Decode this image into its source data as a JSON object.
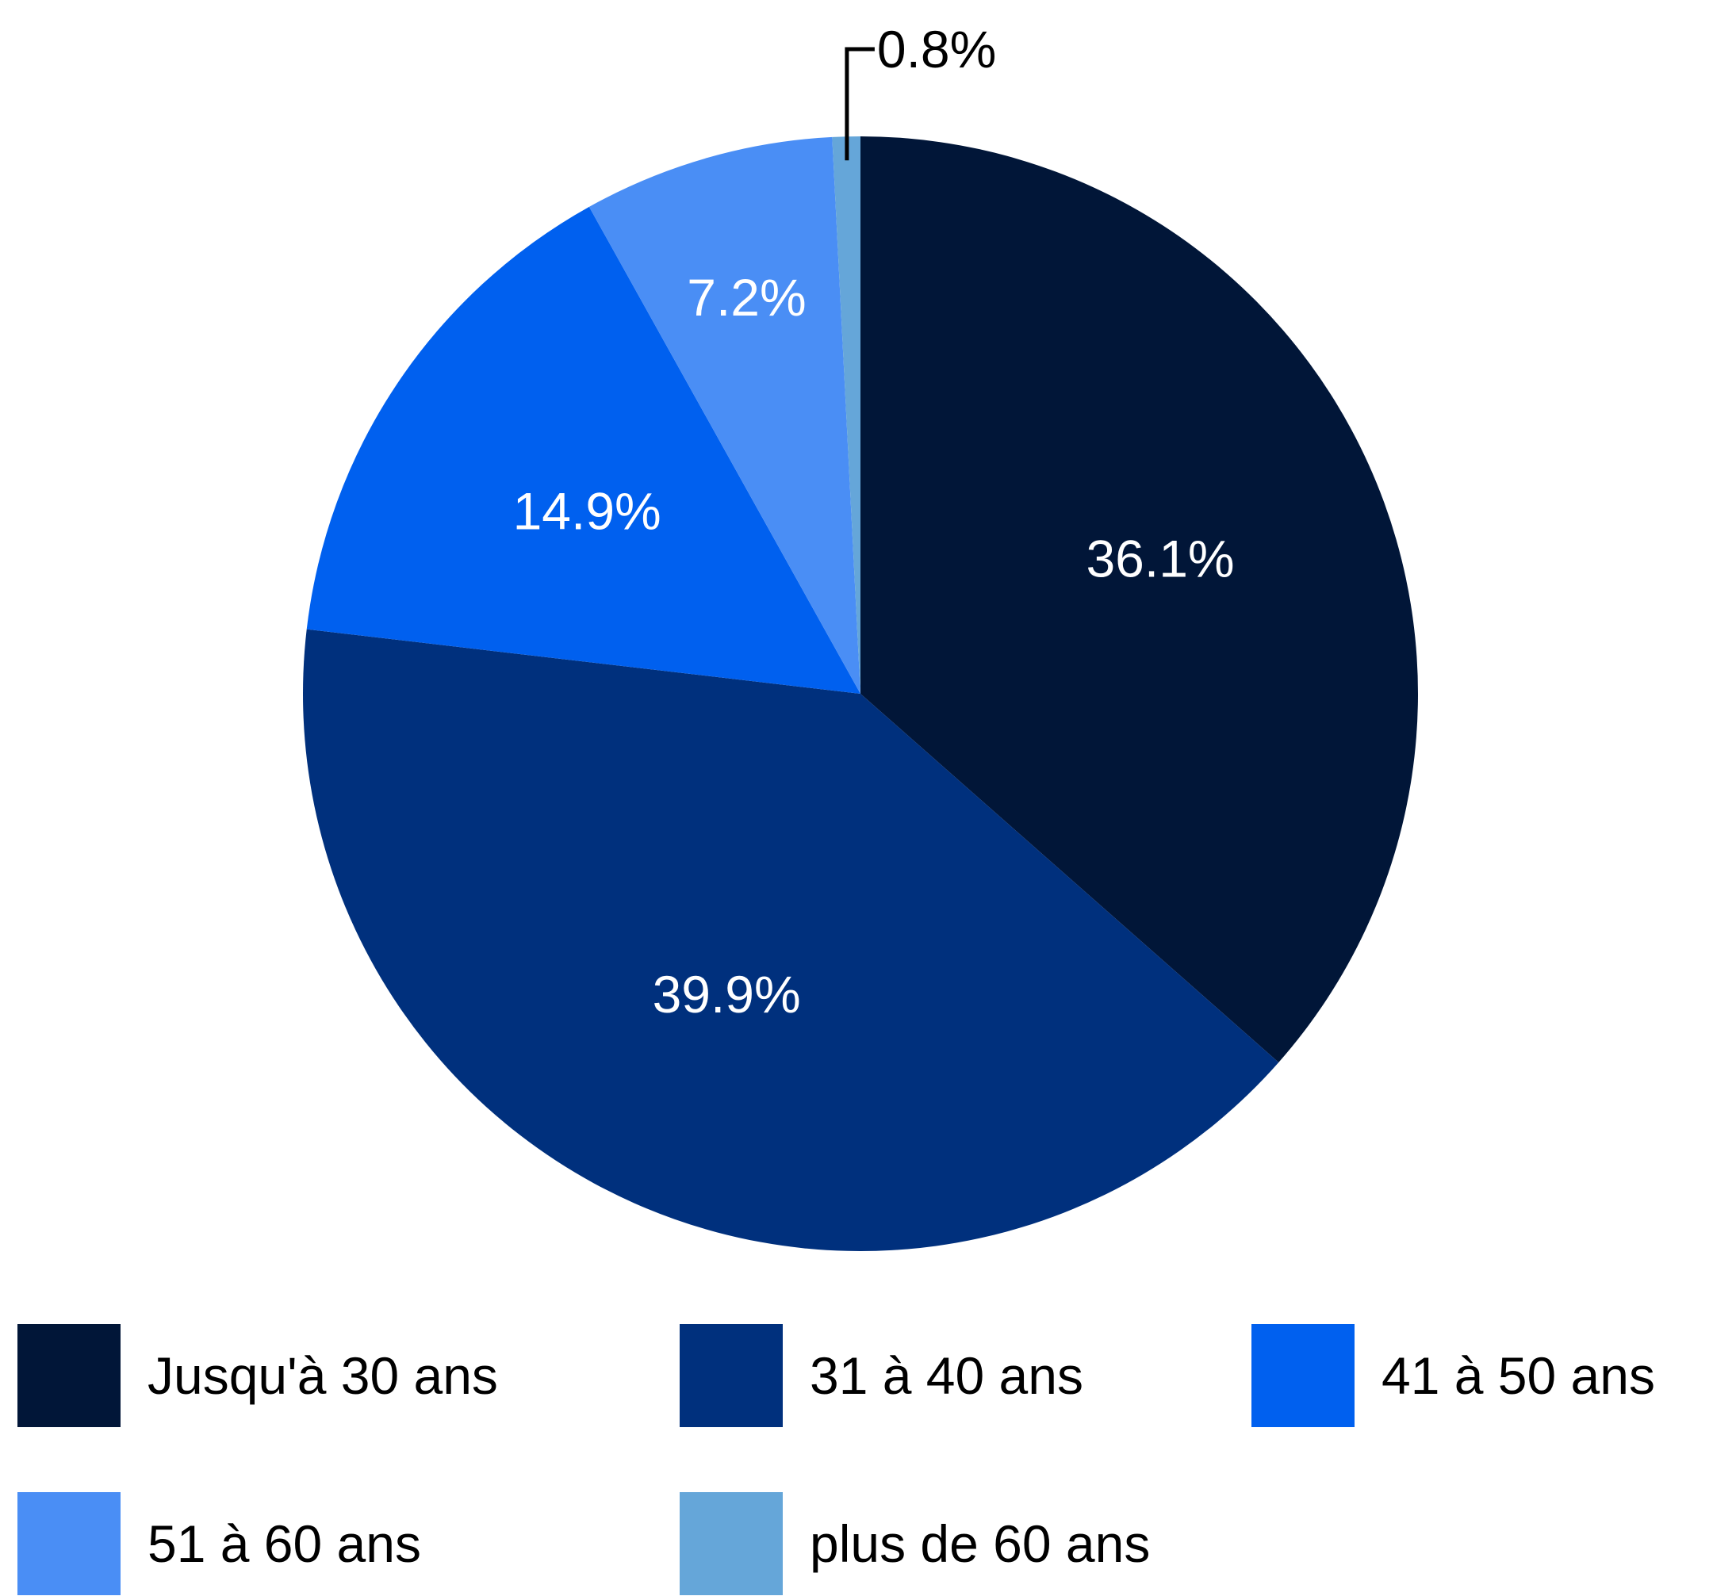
{
  "chart_data": {
    "type": "pie",
    "title": "",
    "categories": [
      "Jusqu'à 30 ans",
      "31 à 40 ans",
      "41 à 50 ans",
      "51 à 60 ans",
      "plus de 60 ans"
    ],
    "values": [
      36.1,
      39.9,
      14.9,
      7.2,
      0.8
    ],
    "value_labels": [
      "36.1%",
      "39.9%",
      "14.9%",
      "7.2%",
      "0.8%"
    ],
    "unit": "%",
    "colors": [
      "#011638",
      "#00307d",
      "#0060ef",
      "#4a8ef5",
      "#65a6d9"
    ],
    "legend_position": "bottom",
    "start_angle": "top, clockwise"
  }
}
